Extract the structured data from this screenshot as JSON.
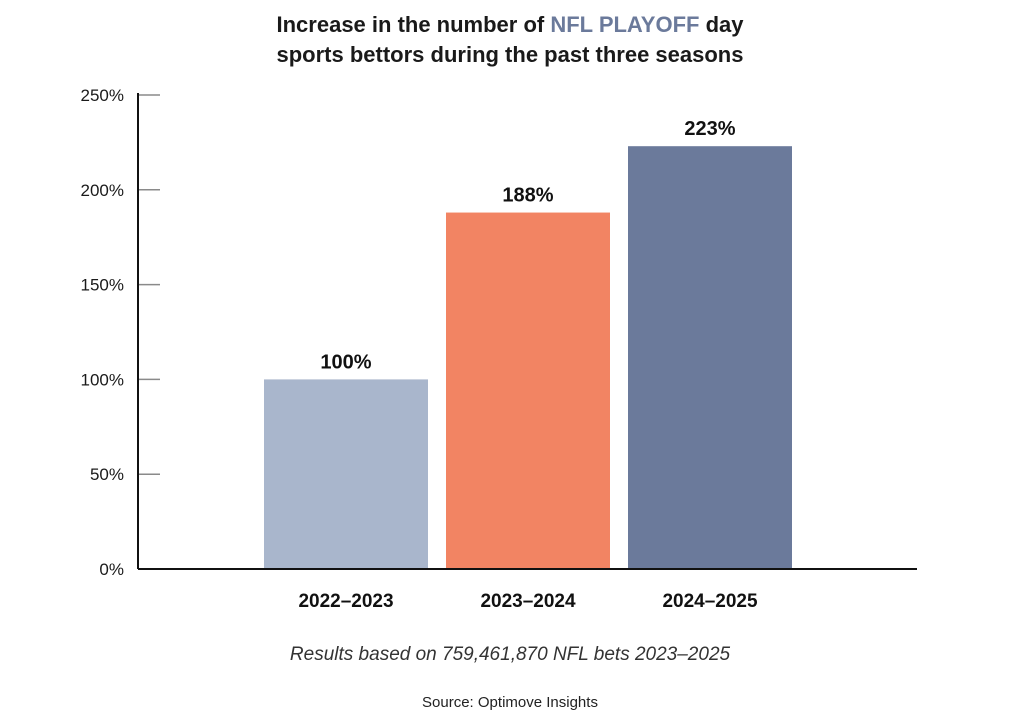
{
  "title": {
    "line1_before": "Increase in the number of ",
    "line1_accent": "NFL PLAYOFF",
    "line1_after": " day",
    "line2": "sports bettors during the past three seasons",
    "accent_color": "#6b7a9b"
  },
  "caption": "Results based on 759,461,870 NFL bets 2023–2025",
  "source": "Source: Optimove Insights",
  "chart_data": {
    "type": "bar",
    "categories": [
      "2022–2023",
      "2023–2024",
      "2024–2025"
    ],
    "values": [
      100,
      188,
      223
    ],
    "value_labels": [
      "100%",
      "188%",
      "223%"
    ],
    "colors": [
      "#a9b6cc",
      "#f28463",
      "#6b7a9b"
    ],
    "ylim": [
      0,
      250
    ],
    "yticks": [
      0,
      50,
      100,
      150,
      200,
      250
    ],
    "ytick_labels": [
      "0%",
      "50%",
      "100%",
      "150%",
      "200%",
      "250%"
    ],
    "xlabel": "",
    "ylabel": "",
    "grid": false,
    "legend": false
  }
}
